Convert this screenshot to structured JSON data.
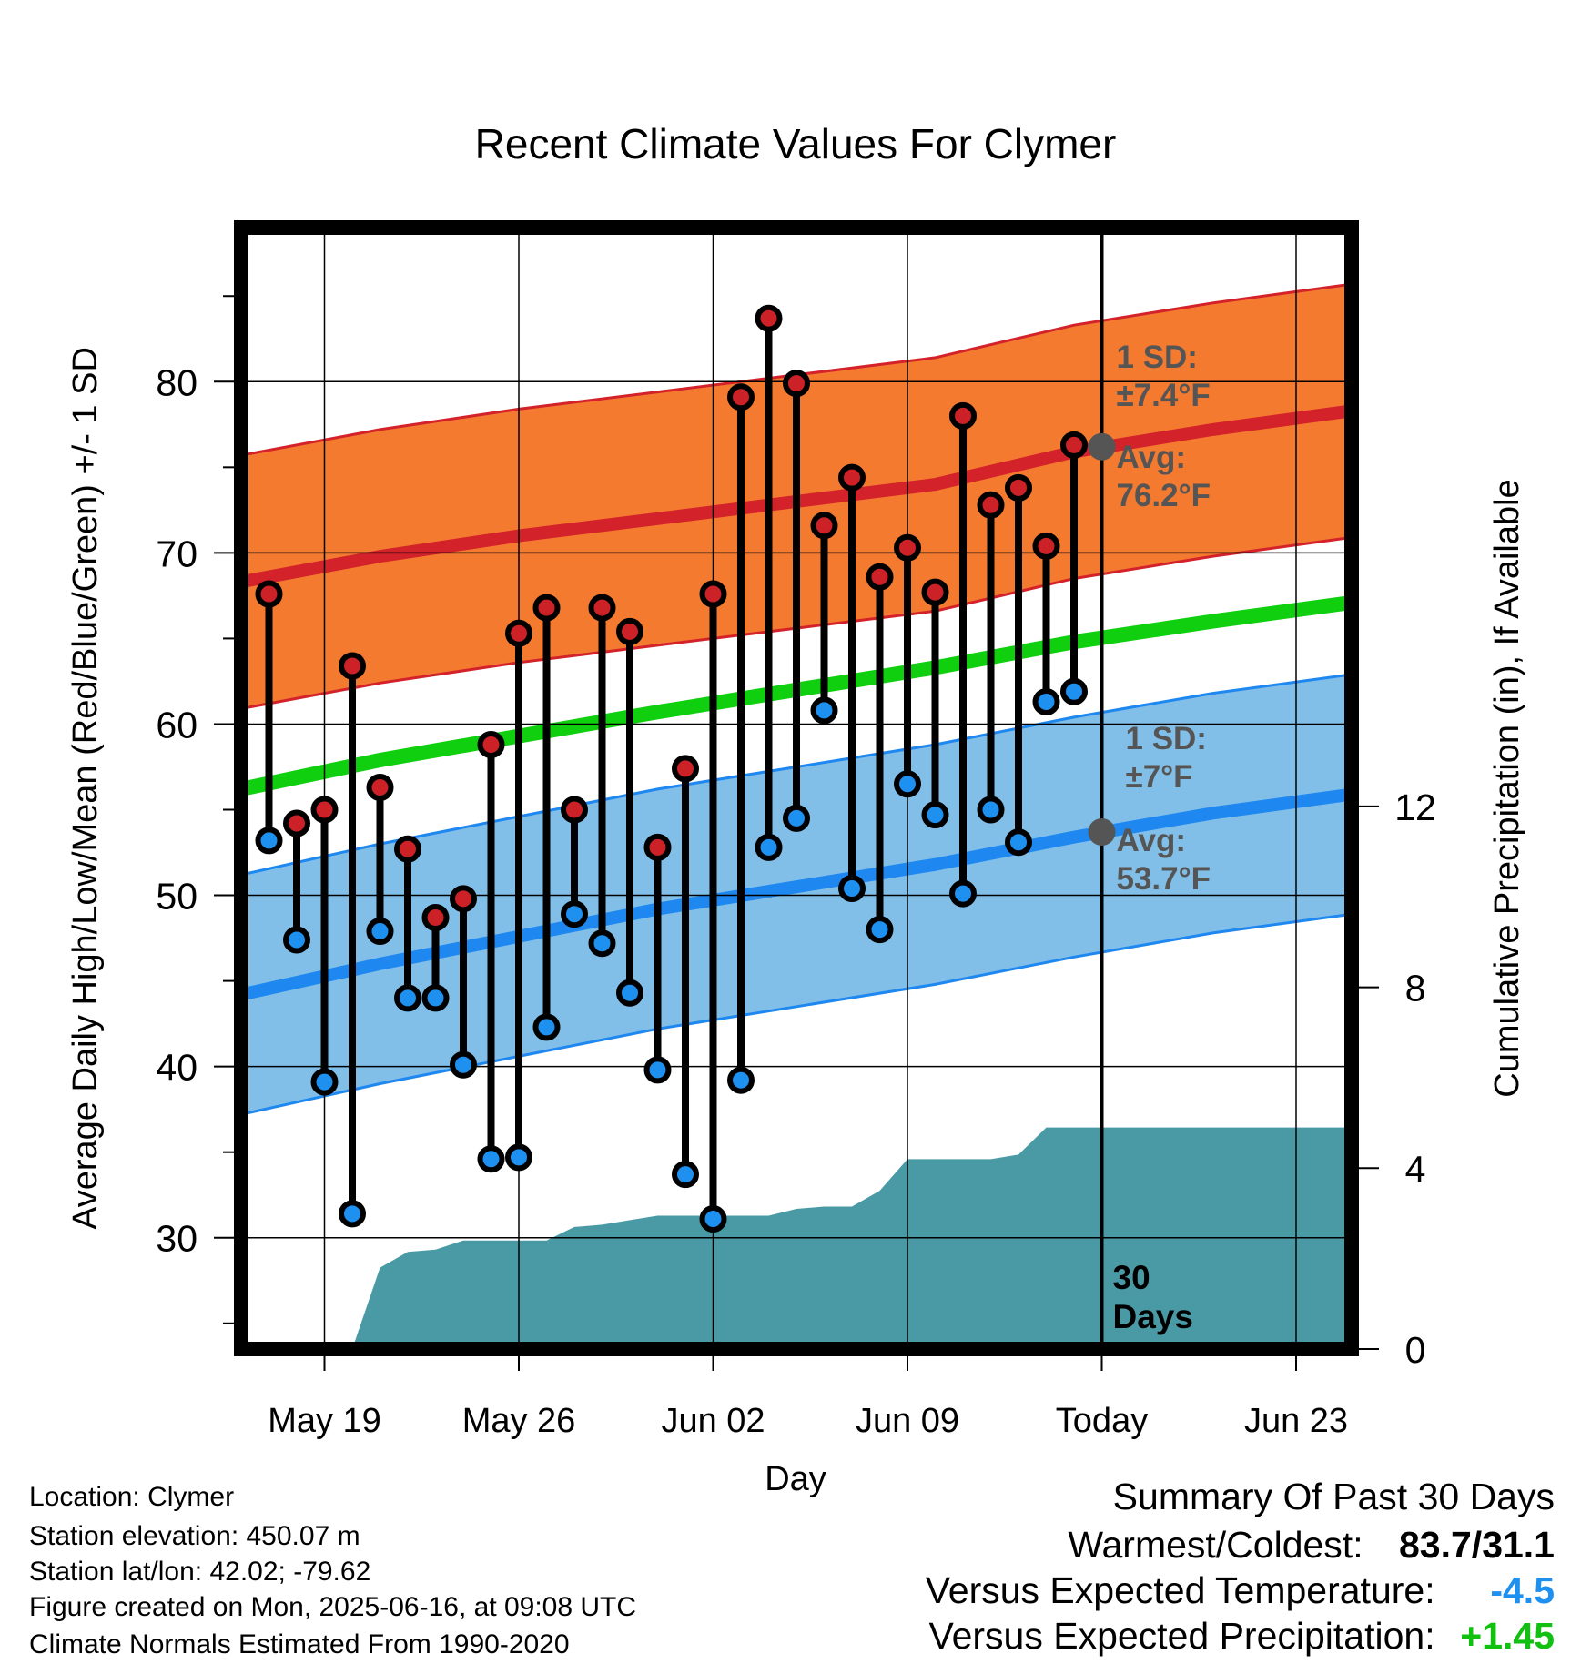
{
  "chart_data": {
    "type": "line",
    "title": "Recent Climate Values For Clymer",
    "xlabel": "Day",
    "ylabel_left": "Average Daily High/Low/Mean (Red/Blue/Green) +/- 1 SD",
    "ylabel_right": "Cumulative Precipitation (in), If Available",
    "x_tick_labels": [
      "May 19",
      "May 26",
      "Jun 02",
      "Jun 09",
      "Today",
      "Jun 23"
    ],
    "x_tick_dates": [
      "2025-05-19",
      "2025-05-26",
      "2025-06-02",
      "2025-06-09",
      "2025-06-16",
      "2025-06-23"
    ],
    "xlim": [
      "2025-05-16",
      "2025-06-25"
    ],
    "today": "2025-06-16",
    "ylim_left": [
      23.5,
      89
    ],
    "y_ticks_left": [
      30,
      40,
      50,
      60,
      70,
      80
    ],
    "ylim_right": [
      0,
      24.8
    ],
    "y_ticks_right": [
      0,
      4,
      8,
      12
    ],
    "grid": true,
    "dates": [
      "2025-05-17",
      "2025-05-18",
      "2025-05-19",
      "2025-05-20",
      "2025-05-21",
      "2025-05-22",
      "2025-05-23",
      "2025-05-24",
      "2025-05-25",
      "2025-05-26",
      "2025-05-27",
      "2025-05-28",
      "2025-05-29",
      "2025-05-30",
      "2025-05-31",
      "2025-06-01",
      "2025-06-02",
      "2025-06-03",
      "2025-06-04",
      "2025-06-05",
      "2025-06-06",
      "2025-06-07",
      "2025-06-08",
      "2025-06-09",
      "2025-06-10",
      "2025-06-11",
      "2025-06-12",
      "2025-06-13",
      "2025-06-14",
      "2025-06-15"
    ],
    "observed_high": [
      67.6,
      54.2,
      55.0,
      63.4,
      56.3,
      52.7,
      48.7,
      49.8,
      58.8,
      65.3,
      66.8,
      55.0,
      66.8,
      65.4,
      52.8,
      57.4,
      67.6,
      79.1,
      83.7,
      79.9,
      71.6,
      74.4,
      68.6,
      70.3,
      67.7,
      78.0,
      72.8,
      73.8,
      70.4,
      76.3
    ],
    "observed_low": [
      53.2,
      47.4,
      39.1,
      31.4,
      47.9,
      44.0,
      44.0,
      40.1,
      34.6,
      34.7,
      42.3,
      48.9,
      47.2,
      44.3,
      39.8,
      33.7,
      31.1,
      39.2,
      52.8,
      54.5,
      60.8,
      50.4,
      48.0,
      56.5,
      54.7,
      50.1,
      55.0,
      53.1,
      61.3,
      61.9
    ],
    "normal_dates": [
      "2025-05-16",
      "2025-05-21",
      "2025-05-26",
      "2025-05-31",
      "2025-06-05",
      "2025-06-10",
      "2025-06-15",
      "2025-06-20",
      "2025-06-25"
    ],
    "normal_high": [
      68.3,
      69.8,
      71.0,
      72.0,
      73.0,
      74.0,
      75.9,
      77.2,
      78.3
    ],
    "normal_high_sd": 7.4,
    "normal_mean": [
      56.2,
      57.9,
      59.3,
      60.7,
      62.0,
      63.3,
      64.8,
      66.0,
      67.1
    ],
    "normal_low": [
      44.2,
      46.0,
      47.6,
      49.2,
      50.5,
      51.8,
      53.4,
      54.8,
      55.9
    ],
    "normal_low_sd": 7.0,
    "precip_dates": [
      "2025-05-16",
      "2025-05-19",
      "2025-05-20",
      "2025-05-21",
      "2025-05-22",
      "2025-05-23",
      "2025-05-24",
      "2025-05-27",
      "2025-05-28",
      "2025-05-29",
      "2025-05-30",
      "2025-05-31",
      "2025-06-02",
      "2025-06-03",
      "2025-06-04",
      "2025-06-05",
      "2025-06-06",
      "2025-06-07",
      "2025-06-08",
      "2025-06-09",
      "2025-06-10",
      "2025-06-11",
      "2025-06-12",
      "2025-06-13",
      "2025-06-14",
      "2025-06-16",
      "2025-06-25"
    ],
    "precip_cumulative": [
      0,
      0,
      0,
      1.8,
      2.15,
      2.2,
      2.4,
      2.4,
      2.7,
      2.75,
      2.85,
      2.95,
      2.95,
      2.95,
      2.95,
      3.1,
      3.15,
      3.15,
      3.5,
      4.2,
      4.2,
      4.2,
      4.2,
      4.3,
      4.9,
      4.9,
      4.9
    ],
    "annotations": {
      "high_sd_label": "1 SD:",
      "high_sd_value": "±7.4°F",
      "high_avg_label": "Avg:",
      "high_avg_value": "76.2°F",
      "high_avg": 76.2,
      "low_sd_label": "1 SD:",
      "low_sd_value": "±7°F",
      "low_avg_label": "Avg:",
      "low_avg_value": "53.7°F",
      "low_avg": 53.7,
      "days_line1": "30",
      "days_line2": "Days"
    },
    "colors": {
      "high_band": "#f47a30",
      "high_line": "#d3222a",
      "low_band": "#82bfe8",
      "low_line": "#1e88f0",
      "mean_line": "#0fcf0f",
      "precip": "#4a9aa6",
      "marker_high": "#cc2126",
      "marker_low": "#1e90f0",
      "annotation": "#555555"
    }
  },
  "info": {
    "location": "Location: Clymer",
    "elevation": "Station elevation: 450.07 m",
    "latlon": "Station lat/lon: 42.02; -79.62",
    "created": "Figure created on Mon, 2025-06-16, at 09:08 UTC",
    "normals": "Climate Normals Estimated From 1990-2020"
  },
  "summary": {
    "title": "Summary Of Past 30 Days",
    "warm_cold_label": "Warmest/Coldest:",
    "warm_cold_value": "83.7/31.1",
    "temp_label": "Versus Expected Temperature:",
    "temp_value": "-4.5",
    "temp_color": "#1e90f0",
    "precip_label": "Versus Expected Precipitation:",
    "precip_value": "+1.45",
    "precip_color": "#12c012"
  }
}
